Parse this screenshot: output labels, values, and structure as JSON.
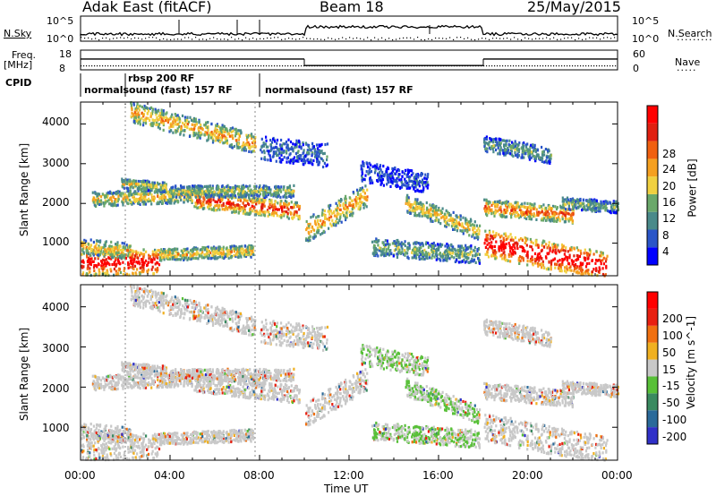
{
  "header": {
    "station": "Adak East (fitACF)",
    "beam": "Beam 18",
    "date": "25/May/2015"
  },
  "sky_panel": {
    "left_label": "N.Sky",
    "right_label": "N.Search",
    "left_ticks": [
      "10^5",
      "10^0"
    ],
    "right_ticks": [
      "10^5",
      "10^0"
    ]
  },
  "freq_panel": {
    "left_label_line1": "Freq.",
    "left_label_line2": "[MHz]",
    "right_label": "Nave",
    "left_ticks": [
      "18",
      "8"
    ],
    "right_ticks": [
      "60",
      "0"
    ],
    "freq_segments": [
      {
        "from_hour": 0.0,
        "to_hour": 10.0,
        "mhz": 13.5
      },
      {
        "from_hour": 10.0,
        "to_hour": 18.0,
        "mhz": 10.2
      },
      {
        "from_hour": 18.0,
        "to_hour": 24.0,
        "mhz": 13.5
      }
    ]
  },
  "cpid": {
    "label": "CPID",
    "entries": [
      {
        "text": "normalsound (fast) 157 RF",
        "from_hour": 0.0
      },
      {
        "text": "rbsp 200 RF",
        "from_hour": 2.0
      },
      {
        "text": "normalsound (fast) 157 RF",
        "from_hour": 8.0
      }
    ]
  },
  "chart_data": [
    {
      "type": "heatmap",
      "title": "",
      "ylabel": "Slant Range [km]",
      "xlim": [
        0,
        24
      ],
      "ylim": [
        180,
        4550
      ],
      "y_ticks": [
        "1000",
        "2000",
        "3000",
        "4000"
      ],
      "colorbar": {
        "label": "Power [dB]",
        "ticks": [
          "28",
          "24",
          "20",
          "16",
          "12",
          "8",
          "4"
        ],
        "colors": [
          "#0000ff",
          "#2a55c8",
          "#4a8a8a",
          "#6aa86a",
          "#f0d040",
          "#f5a020",
          "#f06010",
          "#e02010",
          "#ff0000"
        ]
      }
    },
    {
      "type": "heatmap",
      "title": "",
      "xlabel": "Time UT",
      "ylabel": "Slant Range [km]",
      "xlim": [
        0,
        24
      ],
      "ylim": [
        180,
        4550
      ],
      "x_ticks": [
        "00:00",
        "04:00",
        "08:00",
        "12:00",
        "16:00",
        "20:00",
        "00:00"
      ],
      "y_ticks": [
        "1000",
        "2000",
        "3000",
        "4000"
      ],
      "colorbar": {
        "label": "Velocity [m s^-1]",
        "ticks": [
          "200",
          "100",
          "50",
          "15",
          "-15",
          "-50",
          "-100",
          "-200"
        ],
        "colors": [
          "#3030c8",
          "#2a6a9a",
          "#3a8a60",
          "#58c038",
          "#c8c8c8",
          "#f0b020",
          "#f07010",
          "#e82010",
          "#ff0000"
        ]
      }
    }
  ]
}
